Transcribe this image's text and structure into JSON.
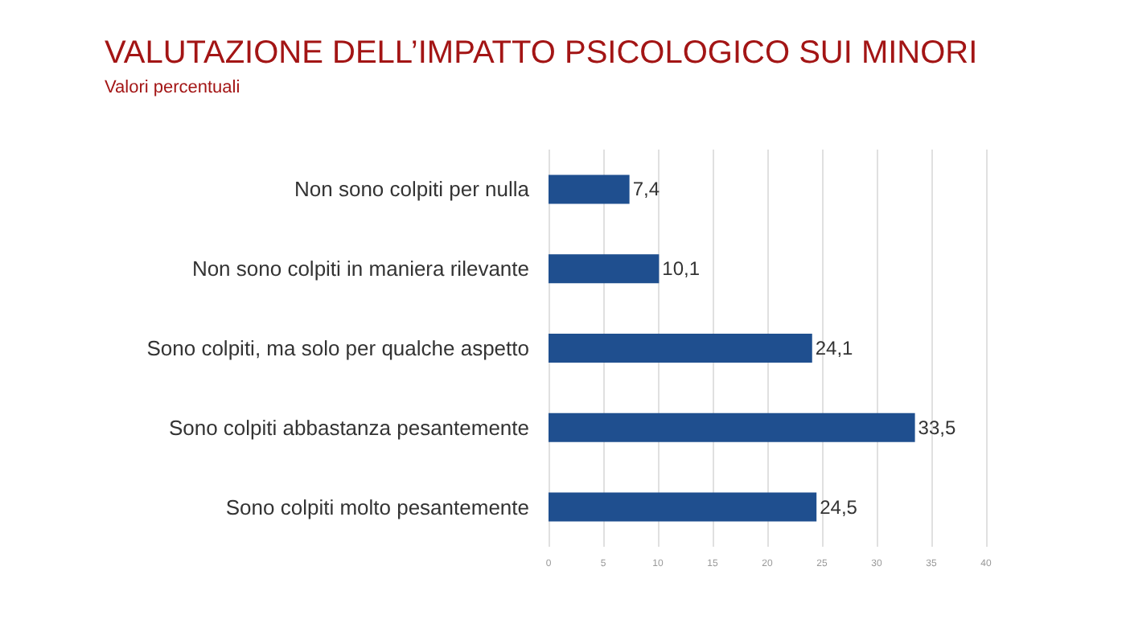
{
  "chart_data": {
    "type": "bar",
    "orientation": "horizontal",
    "title": "VALUTAZIONE DELL’IMPATTO PSICOLOGICO SUI MINORI",
    "subtitle": "Valori percentuali",
    "categories": [
      "Non sono colpiti per nulla",
      "Non sono colpiti in maniera rilevante",
      "Sono colpiti, ma solo per qualche aspetto",
      "Sono colpiti abbastanza pesantemente",
      "Sono colpiti molto pesantemente"
    ],
    "values": [
      7.4,
      10.1,
      24.1,
      33.5,
      24.5
    ],
    "value_labels": [
      "7,4",
      "10,1",
      "24,1",
      "33,5",
      "24,5"
    ],
    "color": "#1f4f8f",
    "xlim": [
      0,
      40
    ],
    "xticks": [
      0,
      5,
      10,
      15,
      20,
      25,
      30,
      35,
      40
    ],
    "grid": "x"
  }
}
